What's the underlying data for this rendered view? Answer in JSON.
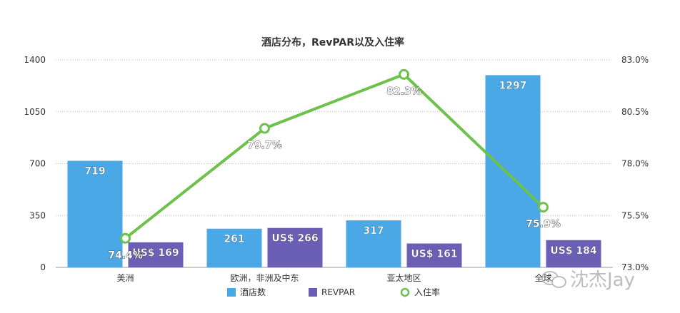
{
  "chart_data": {
    "type": "bar",
    "title": "酒店分布，RevPAR以及入住率",
    "categories": [
      "美洲",
      "欧洲，非洲及中东",
      "亚太地区",
      "全球"
    ],
    "y_left": {
      "ticks": [
        "0",
        "350",
        "700",
        "1050",
        "1400"
      ],
      "range": [
        0,
        1400
      ]
    },
    "y_right": {
      "ticks": [
        "73.0%",
        "75.5%",
        "78.0%",
        "80.5%",
        "83.0%"
      ],
      "range": [
        73.0,
        83.0
      ]
    },
    "grid": true,
    "legend_position": "bottom",
    "series": [
      {
        "name": "酒店数",
        "type": "bar",
        "axis": "left",
        "color": "#4aa8e7",
        "values": [
          719,
          261,
          317,
          1297
        ],
        "labels": [
          "719",
          "261",
          "317",
          "1297"
        ]
      },
      {
        "name": "REVPAR",
        "type": "bar",
        "axis": "left",
        "color": "#6a5fb4",
        "values": [
          169,
          266,
          161,
          184
        ],
        "labels": [
          "US$ 169",
          "US$ 266",
          "US$ 161",
          "US$ 184"
        ]
      },
      {
        "name": "入住率",
        "type": "line",
        "axis": "right",
        "color": "#6cc24a",
        "values": [
          74.4,
          79.7,
          82.3,
          75.9
        ],
        "labels": [
          "74.4%",
          "79.7%",
          "82.3%",
          "75.9%"
        ]
      }
    ]
  },
  "watermark": {
    "text": "沈杰Jay"
  }
}
